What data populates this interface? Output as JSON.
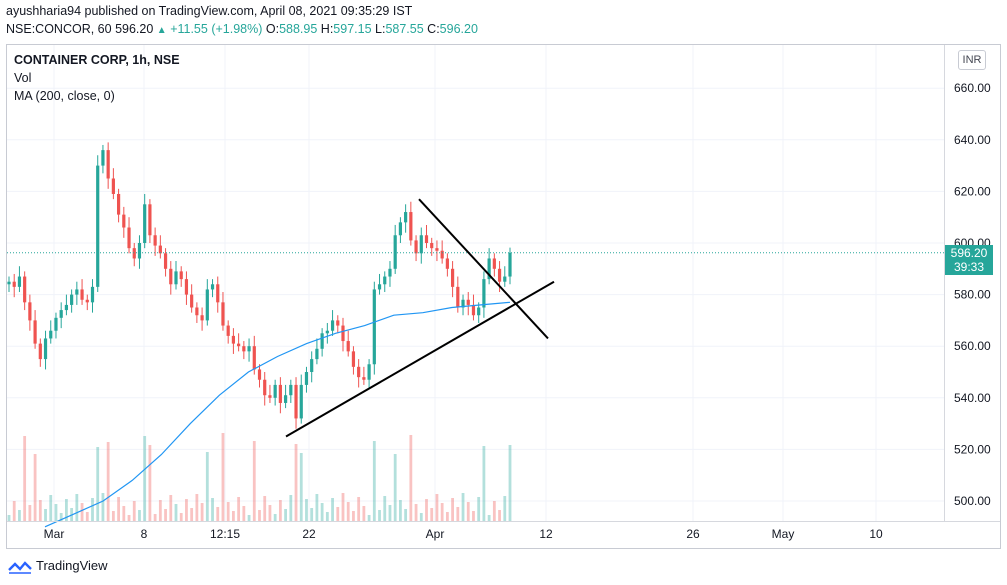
{
  "header": {
    "line1": "ayushharia94 published on TradingView.com, April 08, 2021 09:35:29 IST",
    "symbol": "NSE:CONCOR, 60",
    "last": "596.20",
    "change": "+11.55 (+1.98%)",
    "o_label": "O:",
    "o_value": "588.95",
    "h_label": "H:",
    "h_value": "597.15",
    "l_label": "L:",
    "l_value": "587.55",
    "c_label": "C:",
    "c_value": "596.20"
  },
  "legend": {
    "title": "CONTAINER CORP, 1h, NSE",
    "vol": "Vol",
    "ma": "MA (200, close, 0)"
  },
  "currency": "INR",
  "price_tag": {
    "price": "596.20",
    "countdown": "39:33"
  },
  "footer": {
    "brand": "TradingView"
  },
  "colors": {
    "up": "#26a69a",
    "down": "#ef5350",
    "ma": "#2196f3",
    "trendline": "#000000",
    "grid": "#f0f3fa"
  },
  "chart_data": {
    "type": "candlestick",
    "title": "CONTAINER CORP, 1h, NSE",
    "ylim": [
      494,
      668
    ],
    "y_ticks": [
      "500.00",
      "520.00",
      "540.00",
      "560.00",
      "580.00",
      "600.00",
      "620.00",
      "640.00",
      "660.00"
    ],
    "x_ticks": [
      "Mar",
      "8",
      "12:15",
      "22",
      "Apr",
      "12",
      "26",
      "May",
      "10"
    ],
    "last_price": 596.2,
    "close_series_approx": [
      585,
      583,
      587,
      577,
      570,
      561,
      555,
      563,
      566,
      571,
      574,
      576,
      580,
      582,
      578,
      577,
      583,
      630,
      636,
      625,
      619,
      611,
      606,
      598,
      594,
      600,
      615,
      603,
      599,
      596,
      590,
      584,
      589,
      586,
      580,
      575,
      572,
      570,
      582,
      584,
      577,
      568,
      564,
      561,
      560,
      558,
      560,
      551,
      547,
      541,
      540,
      545,
      538,
      541,
      545,
      532,
      545,
      550,
      555,
      559,
      565,
      566,
      570,
      568,
      562,
      558,
      552,
      548,
      547,
      553,
      582,
      584,
      587,
      590,
      603,
      608,
      612,
      601,
      596,
      603,
      600,
      598,
      597,
      594,
      590,
      583,
      575,
      578,
      576,
      572,
      575,
      586,
      594,
      590,
      585,
      587,
      596.2
    ],
    "ma200_approx": [
      490,
      495,
      500,
      508,
      518,
      530,
      541,
      550,
      556,
      561,
      565,
      568,
      572,
      573,
      575,
      576,
      577
    ],
    "trendlines": [
      {
        "from": [
          "Mar 19",
          525
        ],
        "to": [
          "Apr 12",
          585
        ]
      },
      {
        "from": [
          "Mar 31",
          617
        ],
        "to": [
          "Apr 12",
          563
        ]
      }
    ],
    "volume": "volume bars shown at bottom of price pane"
  }
}
